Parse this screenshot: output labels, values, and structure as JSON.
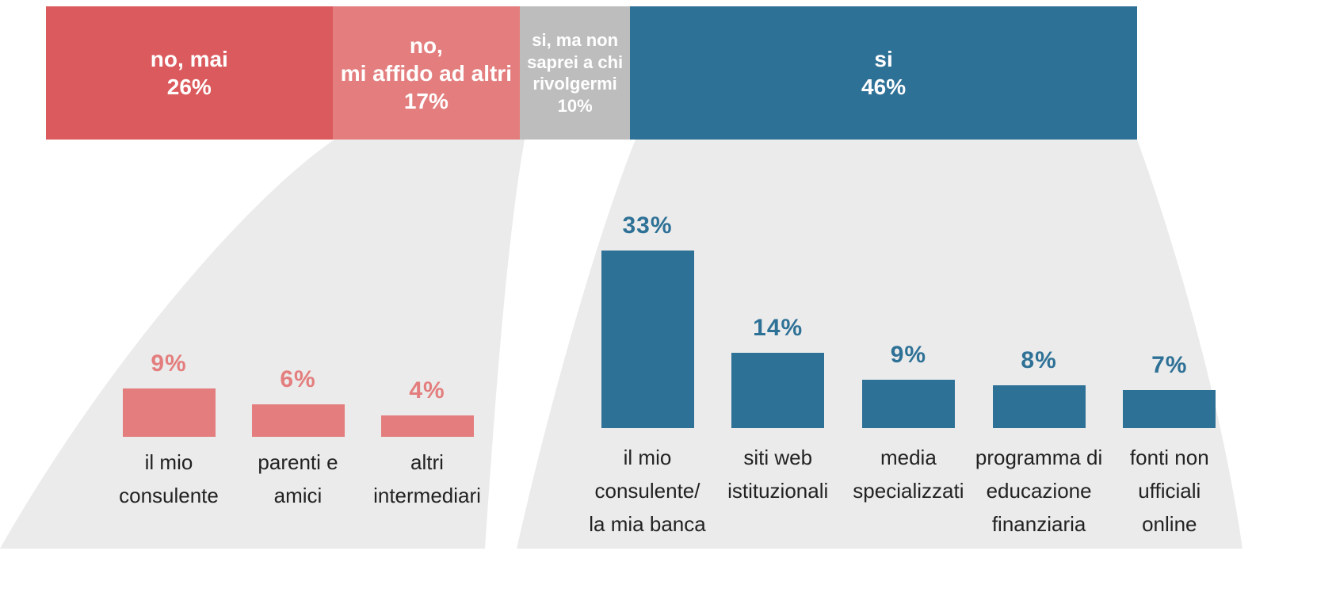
{
  "chart_data": [
    {
      "type": "stacked_bar",
      "categories": [
        "no, mai",
        "no,\nmi affido ad altri",
        "si, ma non\nsaprei  a chi\nrivolgermi",
        "si"
      ],
      "values": [
        26,
        17,
        10,
        46
      ],
      "value_labels": [
        "26%",
        "17%",
        "10%",
        "46%"
      ],
      "colors": [
        "#db5a5d",
        "#e47e7e",
        "#bdbdbd",
        "#2e7196"
      ]
    },
    {
      "type": "bar",
      "categories": [
        "il mio\nconsulente",
        "parenti e\namici",
        "altri\nintermediari"
      ],
      "values": [
        9,
        6,
        4
      ],
      "value_labels": [
        "9%",
        "6%",
        "4%"
      ],
      "color": "#e47e7e"
    },
    {
      "type": "bar",
      "categories": [
        "il mio\nconsulente/\nla mia banca",
        "siti web\nistituzionali",
        "media\nspecializzati",
        "programma di\neducazione\nfinanziaria",
        "fonti non\nufficiali\nonline"
      ],
      "values": [
        33,
        14,
        9,
        8,
        7
      ],
      "value_labels": [
        "33%",
        "14%",
        "9%",
        "8%",
        "7%"
      ],
      "color": "#2e7196"
    }
  ]
}
